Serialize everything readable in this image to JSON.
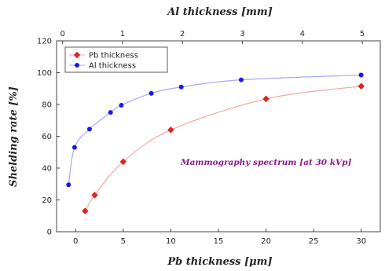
{
  "chart_data": {
    "type": "scatter",
    "xlabel": "Pb thickness [μm]",
    "x2label": "Al thickness [mm]",
    "ylabel": "Shelding rate [%]",
    "xlim": [
      -2,
      32
    ],
    "x2lim": [
      -0.1,
      5.3
    ],
    "ylim": [
      0,
      120
    ],
    "xticks": [
      0,
      5,
      10,
      15,
      20,
      25,
      30
    ],
    "x2ticks": [
      0,
      1,
      2,
      3,
      4,
      5
    ],
    "yticks": [
      0,
      20,
      40,
      60,
      80,
      100,
      120
    ],
    "grid": false,
    "legend_position": "top-left",
    "annotation": "Mammography spectrum [at 30 kVp]",
    "series": [
      {
        "name": "Pb thickness",
        "axis": "bottom",
        "color": "#dd2222",
        "line_color": "#f4a7a7",
        "marker": "diamond",
        "x": [
          1,
          2,
          5,
          10,
          20,
          30
        ],
        "y": [
          13,
          23,
          44,
          64,
          83.5,
          91.5
        ]
      },
      {
        "name": "Al thickness",
        "axis": "top",
        "color": "#1a1ae6",
        "line_color": "#a8a8f5",
        "marker": "circle",
        "x": [
          0.1,
          0.2,
          0.45,
          0.8,
          0.98,
          1.48,
          1.98,
          2.98,
          4.98
        ],
        "y": [
          29.5,
          53,
          64.5,
          75,
          79.5,
          87,
          91,
          95.5,
          98.5
        ]
      }
    ]
  }
}
